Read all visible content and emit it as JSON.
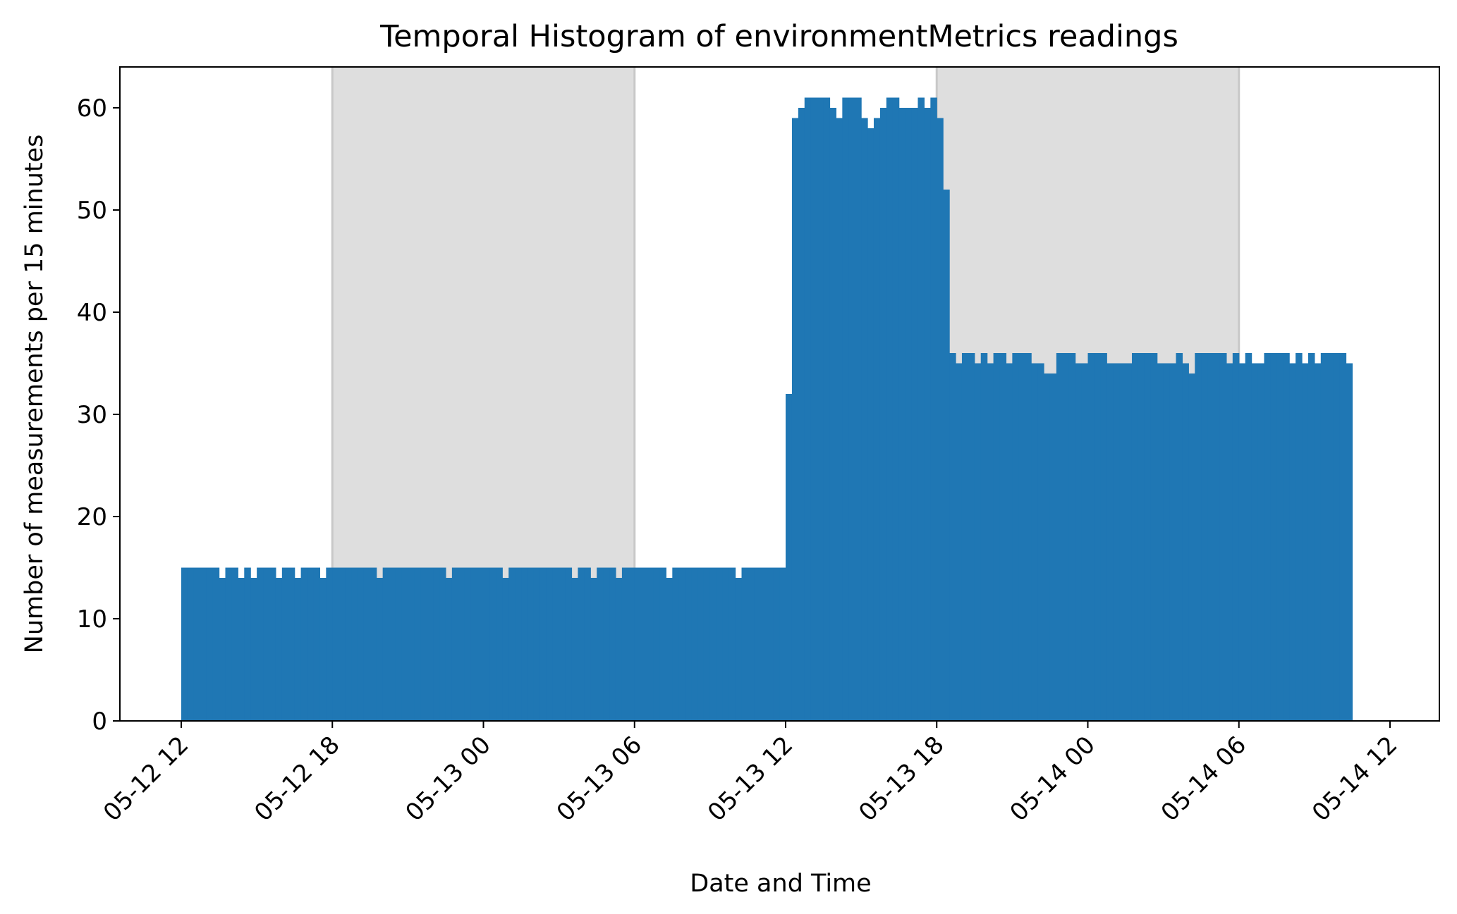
{
  "chart_data": {
    "type": "bar",
    "title": "Temporal Histogram of environmentMetrics readings",
    "xlabel": "Date and Time",
    "ylabel": "Number of measurements per 15 minutes",
    "bin_minutes": 15,
    "x_start": "05-12 12",
    "x_tick_labels": [
      "05-12 12",
      "05-12 18",
      "05-13 00",
      "05-13 06",
      "05-13 12",
      "05-13 18",
      "05-14 00",
      "05-14 06",
      "05-14 12"
    ],
    "xlim": [
      "05-12 09:36",
      "05-14 12:12"
    ],
    "y_ticks": [
      0,
      10,
      20,
      30,
      40,
      50,
      60
    ],
    "ylim": [
      0,
      64
    ],
    "grid": false,
    "shaded_intervals": [
      {
        "start": "05-12 18",
        "end": "05-13 06"
      },
      {
        "start": "05-13 18",
        "end": "05-14 06"
      }
    ],
    "bar_color": "#1f77b4",
    "shade_color": "#dedede",
    "values": [
      15,
      15,
      15,
      15,
      15,
      15,
      14,
      15,
      15,
      14,
      15,
      14,
      15,
      15,
      15,
      14,
      15,
      15,
      14,
      15,
      15,
      15,
      14,
      15,
      15,
      15,
      15,
      15,
      15,
      15,
      15,
      14,
      15,
      15,
      15,
      15,
      15,
      15,
      15,
      15,
      15,
      15,
      14,
      15,
      15,
      15,
      15,
      15,
      15,
      15,
      15,
      14,
      15,
      15,
      15,
      15,
      15,
      15,
      15,
      15,
      15,
      15,
      14,
      15,
      15,
      14,
      15,
      15,
      15,
      14,
      15,
      15,
      15,
      15,
      15,
      15,
      15,
      14,
      15,
      15,
      15,
      15,
      15,
      15,
      15,
      15,
      15,
      15,
      14,
      15,
      15,
      15,
      15,
      15,
      15,
      15,
      32,
      59,
      60,
      61,
      61,
      61,
      61,
      60,
      59,
      61,
      61,
      61,
      59,
      58,
      59,
      60,
      61,
      61,
      60,
      60,
      60,
      61,
      60,
      61,
      59,
      52,
      36,
      35,
      36,
      36,
      35,
      36,
      35,
      36,
      36,
      35,
      36,
      36,
      36,
      35,
      35,
      34,
      34,
      36,
      36,
      36,
      35,
      35,
      36,
      36,
      36,
      35,
      35,
      35,
      35,
      36,
      36,
      36,
      36,
      35,
      35,
      35,
      36,
      35,
      34,
      36,
      36,
      36,
      36,
      36,
      35,
      36,
      35,
      36,
      35,
      35,
      36,
      36,
      36,
      36,
      35,
      36,
      35,
      36,
      35,
      36,
      36,
      36,
      36,
      35
    ]
  }
}
